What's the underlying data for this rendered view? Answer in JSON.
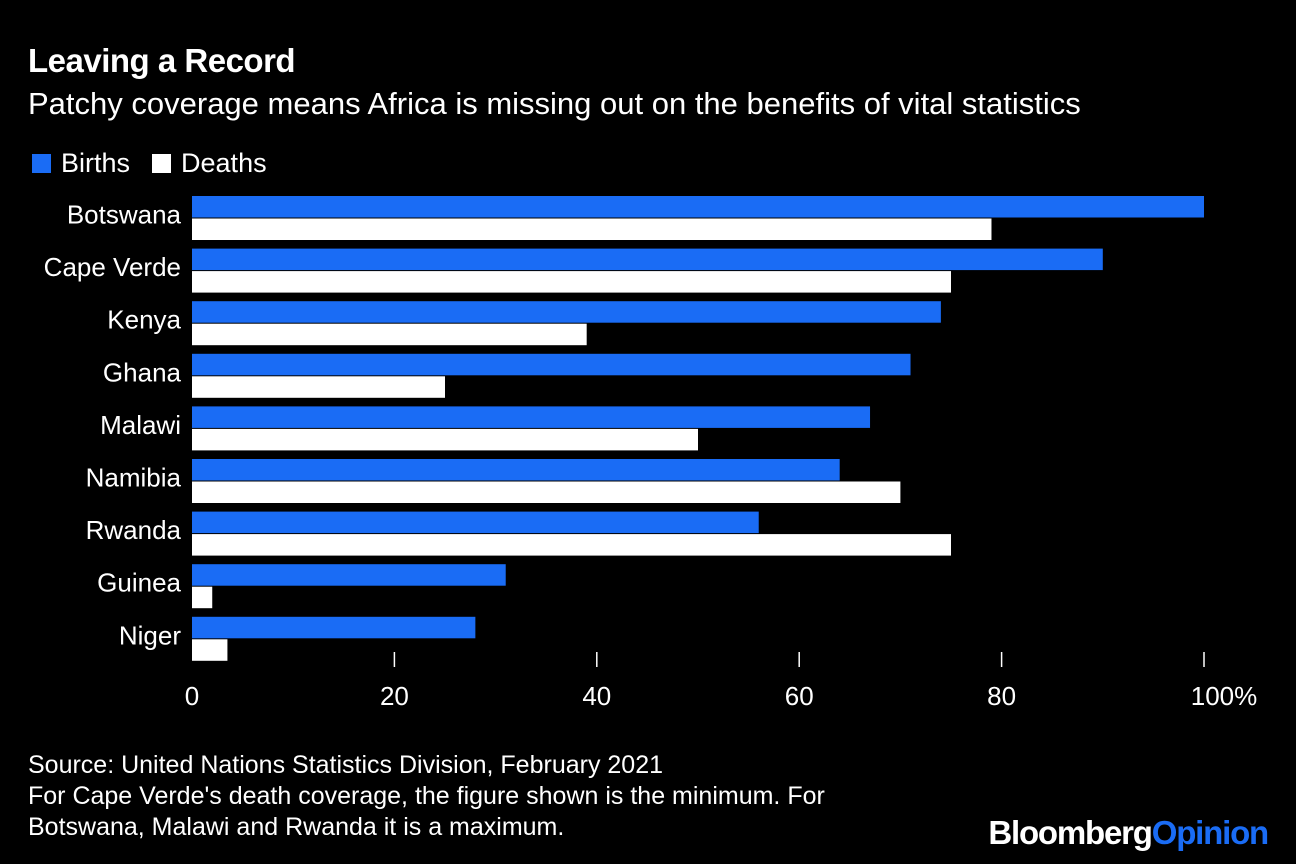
{
  "title": "Leaving a Record",
  "subtitle": "Patchy coverage means Africa is missing out on the benefits of vital statistics",
  "footer": {
    "source": "Source: United Nations Statistics Division, February 2021",
    "note_line1": "For Cape Verde's death coverage, the figure shown is the minimum. For",
    "note_line2": "Botswana, Malawi and Rwanda it is a maximum."
  },
  "logo": {
    "part1": "Bloomberg",
    "part2": "Opinion"
  },
  "colors": {
    "births": "#1a6cf5",
    "deaths": "#ffffff",
    "background": "#000000",
    "logo_accent": "#1a6cf5"
  },
  "chart_data": {
    "type": "bar",
    "orientation": "horizontal",
    "categories": [
      "Botswana",
      "Cape Verde",
      "Kenya",
      "Ghana",
      "Malawi",
      "Namibia",
      "Rwanda",
      "Guinea",
      "Niger"
    ],
    "series": [
      {
        "name": "Births",
        "color": "#1a6cf5",
        "values": [
          100,
          90,
          74,
          71,
          67,
          64,
          56,
          31,
          28
        ]
      },
      {
        "name": "Deaths",
        "color": "#ffffff",
        "values": [
          79,
          75,
          39,
          25,
          50,
          70,
          75,
          2,
          3.5
        ]
      }
    ],
    "xlim": [
      0,
      100
    ],
    "xticks": [
      0,
      20,
      40,
      60,
      80,
      100
    ],
    "xtick_labels": [
      "0",
      "20",
      "40",
      "60",
      "80",
      "100%"
    ],
    "legend_position": "top-left",
    "grid": false
  }
}
